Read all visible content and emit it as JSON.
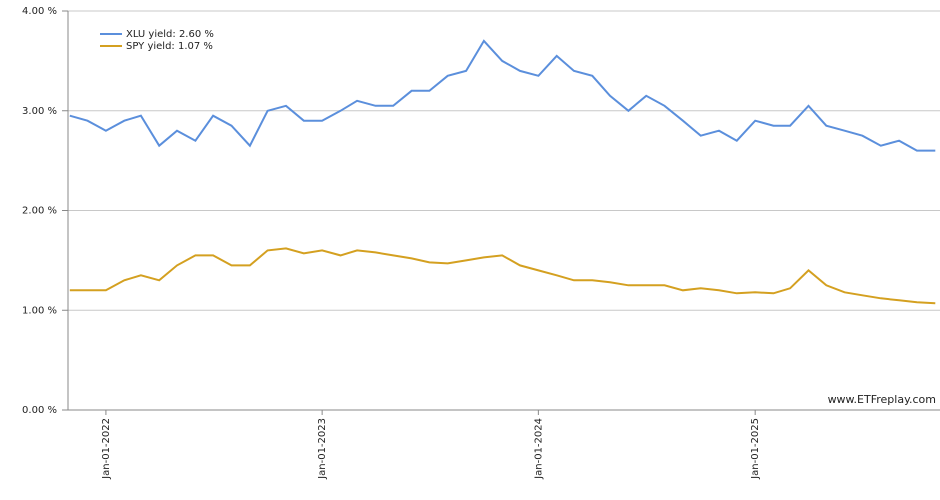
{
  "chart_data": {
    "type": "line",
    "x": [
      "2021-11-01",
      "2021-12-01",
      "2022-01-01",
      "2022-02-01",
      "2022-03-01",
      "2022-04-01",
      "2022-05-01",
      "2022-06-01",
      "2022-07-01",
      "2022-08-01",
      "2022-09-01",
      "2022-10-01",
      "2022-11-01",
      "2022-12-01",
      "2023-01-01",
      "2023-02-01",
      "2023-03-01",
      "2023-04-01",
      "2023-05-01",
      "2023-06-01",
      "2023-07-01",
      "2023-08-01",
      "2023-09-01",
      "2023-10-01",
      "2023-11-01",
      "2023-12-01",
      "2024-01-01",
      "2024-02-01",
      "2024-03-01",
      "2024-04-01",
      "2024-05-01",
      "2024-06-01",
      "2024-07-01",
      "2024-08-01",
      "2024-09-01",
      "2024-10-01",
      "2024-11-01",
      "2024-12-01",
      "2025-01-01",
      "2025-02-01",
      "2025-03-01",
      "2025-04-01",
      "2025-05-01",
      "2025-06-01",
      "2025-07-01",
      "2025-08-01",
      "2025-09-01",
      "2025-10-01",
      "2025-11-01"
    ],
    "series": [
      {
        "name": "XLU yield: 2.60 %",
        "color": "#5b8fdc",
        "values": [
          2.95,
          2.9,
          2.8,
          2.9,
          2.95,
          2.65,
          2.8,
          2.7,
          2.95,
          2.85,
          2.65,
          3.0,
          3.05,
          2.9,
          2.9,
          3.0,
          3.1,
          3.05,
          3.05,
          3.2,
          3.2,
          3.35,
          3.4,
          3.7,
          3.5,
          3.4,
          3.35,
          3.55,
          3.4,
          3.35,
          3.15,
          3.0,
          3.15,
          3.05,
          2.9,
          2.75,
          2.8,
          2.7,
          2.9,
          2.85,
          2.85,
          3.05,
          2.85,
          2.8,
          2.75,
          2.65,
          2.7,
          2.6,
          2.6
        ]
      },
      {
        "name": "SPY yield: 1.07 %",
        "color": "#d4a020",
        "values": [
          1.2,
          1.2,
          1.2,
          1.3,
          1.35,
          1.3,
          1.45,
          1.55,
          1.55,
          1.45,
          1.45,
          1.6,
          1.62,
          1.57,
          1.6,
          1.55,
          1.6,
          1.58,
          1.55,
          1.52,
          1.48,
          1.47,
          1.5,
          1.53,
          1.55,
          1.45,
          1.4,
          1.35,
          1.3,
          1.3,
          1.28,
          1.25,
          1.25,
          1.25,
          1.2,
          1.22,
          1.2,
          1.17,
          1.18,
          1.17,
          1.22,
          1.4,
          1.25,
          1.18,
          1.15,
          1.12,
          1.1,
          1.08,
          1.07
        ]
      }
    ],
    "xlim": [
      "2021-10-29",
      "2025-11-09"
    ],
    "xticks": [
      {
        "value": "2022-01-01",
        "label": "Jan-01-2022"
      },
      {
        "value": "2023-01-01",
        "label": "Jan-01-2023"
      },
      {
        "value": "2024-01-01",
        "label": "Jan-01-2024"
      },
      {
        "value": "2025-01-01",
        "label": "Jan-01-2025"
      }
    ],
    "ylim": [
      0,
      4
    ],
    "yticks": [
      {
        "value": 0,
        "label": "0.00 %"
      },
      {
        "value": 1,
        "label": "1.00 %"
      },
      {
        "value": 2,
        "label": "2.00 %"
      },
      {
        "value": 3,
        "label": "3.00 %"
      },
      {
        "value": 4,
        "label": "4.00 %"
      }
    ],
    "grid": true,
    "watermark": "www.ETFreplay.com"
  }
}
